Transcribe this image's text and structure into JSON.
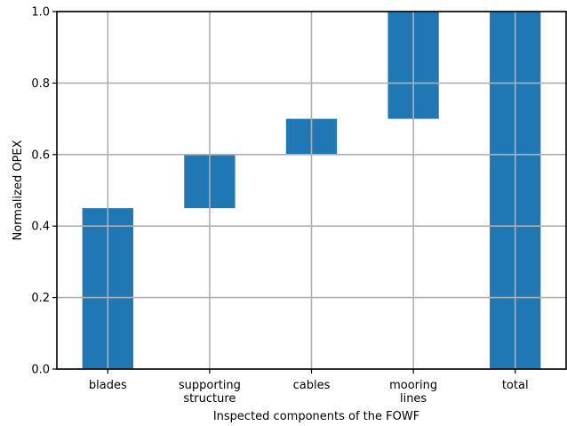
{
  "chart_data": {
    "type": "bar",
    "subtype": "waterfall",
    "categories": [
      "blades",
      "supporting structure",
      "cables",
      "mooring lines",
      "total"
    ],
    "category_labels": [
      [
        "blades"
      ],
      [
        "supporting",
        "structure"
      ],
      [
        "cables"
      ],
      [
        "mooring",
        "lines"
      ],
      [
        "total"
      ]
    ],
    "bars": [
      {
        "bottom": 0.0,
        "top": 0.45
      },
      {
        "bottom": 0.45,
        "top": 0.6
      },
      {
        "bottom": 0.6,
        "top": 0.7
      },
      {
        "bottom": 0.7,
        "top": 1.0
      },
      {
        "bottom": 0.0,
        "top": 1.0
      }
    ],
    "values": [
      0.45,
      0.15,
      0.1,
      0.3,
      1.0
    ],
    "xlabel": "Inspected components of the FOWF",
    "ylabel": "Normalized OPEX",
    "ylim": [
      0,
      1.0
    ],
    "yticks": [
      "0.0",
      "0.2",
      "0.4",
      "0.6",
      "0.8",
      "1.0"
    ],
    "grid": true,
    "bar_color": "#1f77b4",
    "grid_color": "#b0b0b0"
  }
}
